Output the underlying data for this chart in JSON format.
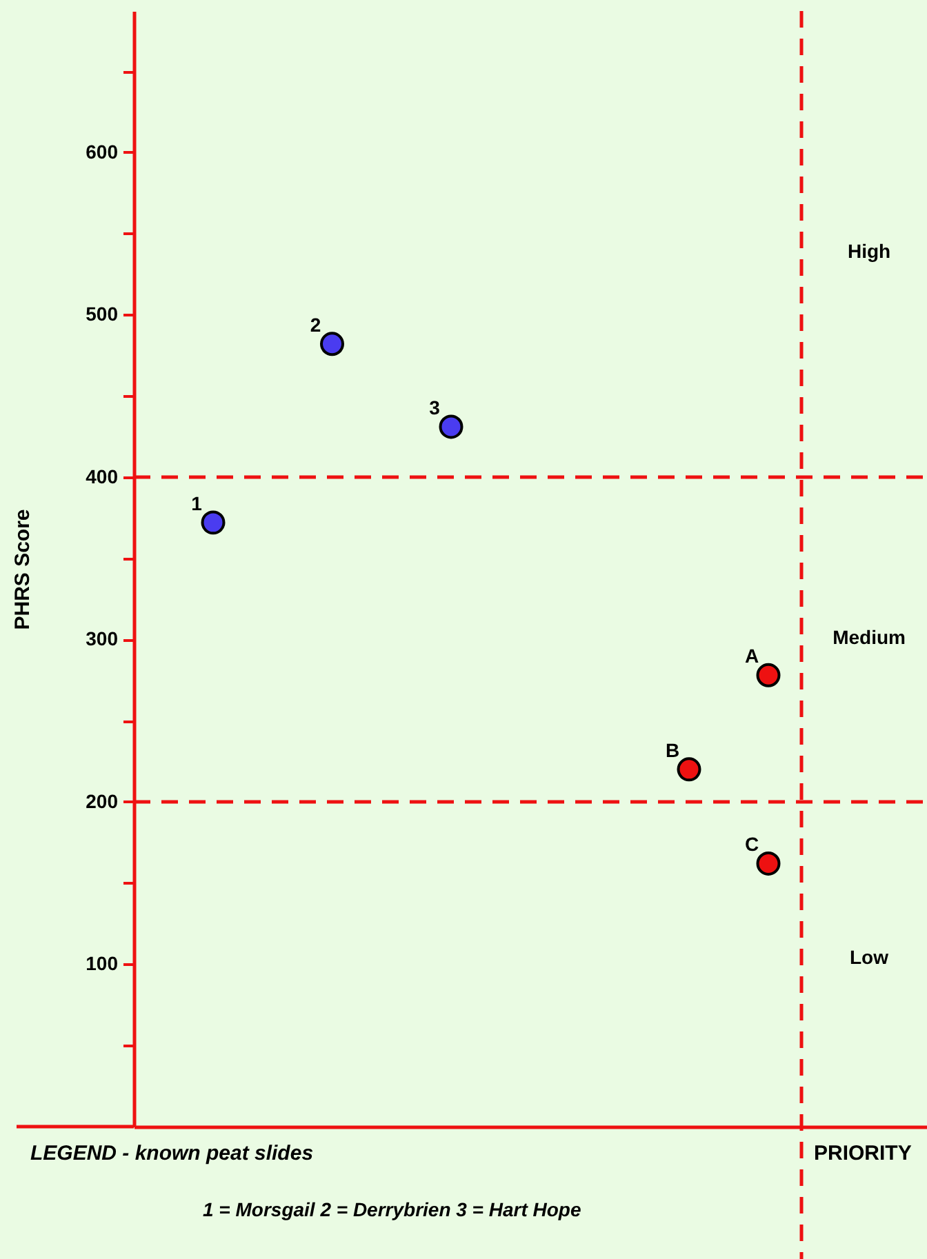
{
  "chart_data": {
    "type": "scatter",
    "ylabel": "PHRS Score",
    "categories": [
      null,
      null,
      null,
      null,
      null,
      null,
      null,
      null,
      null,
      null,
      null,
      null,
      null,
      null,
      null,
      null,
      null,
      null,
      null
    ],
    "ylim": [
      0,
      687
    ],
    "yticks": [
      {
        "value": 50,
        "label": null
      },
      100,
      {
        "value": 150,
        "label": null
      },
      200,
      {
        "value": 250,
        "label": null
      },
      300,
      {
        "value": 350,
        "label": null
      },
      400,
      {
        "value": 450,
        "label": null
      },
      500,
      {
        "value": 550,
        "label": null
      },
      600,
      {
        "value": 650,
        "label": null
      }
    ],
    "tick_labels": "y",
    "grid": false,
    "marker": "circle",
    "series": [
      {
        "name": "1",
        "color": "#4a3cf0",
        "values": [
          null,
          372,
          null,
          null,
          null,
          null,
          null,
          null,
          null,
          null,
          null,
          null,
          null,
          null,
          null,
          null,
          null,
          null,
          null
        ]
      },
      {
        "name": "2",
        "color": "#4a3cf0",
        "values": [
          null,
          null,
          null,
          null,
          482,
          null,
          null,
          null,
          null,
          null,
          null,
          null,
          null,
          null,
          null,
          null,
          null,
          null,
          null
        ]
      },
      {
        "name": "3",
        "color": "#4a3cf0",
        "values": [
          null,
          null,
          null,
          null,
          null,
          null,
          null,
          431,
          null,
          null,
          null,
          null,
          null,
          null,
          null,
          null,
          null,
          null,
          null
        ]
      },
      {
        "name": "A",
        "color": "#ee1111",
        "values": [
          null,
          null,
          null,
          null,
          null,
          null,
          null,
          null,
          null,
          null,
          null,
          null,
          null,
          null,
          null,
          278,
          null,
          null,
          null
        ]
      },
      {
        "name": "B",
        "color": "#ee1111",
        "values": [
          null,
          null,
          null,
          null,
          null,
          null,
          null,
          null,
          null,
          null,
          null,
          null,
          null,
          220,
          null,
          null,
          null,
          null,
          null
        ]
      },
      {
        "name": "C",
        "color": "#ee1111",
        "values": [
          null,
          null,
          null,
          null,
          null,
          null,
          null,
          null,
          null,
          null,
          null,
          null,
          null,
          null,
          null,
          162,
          null,
          null,
          null
        ]
      }
    ],
    "ref_lines": [
      {
        "axis": "y",
        "value": 400,
        "color": "#ee1111",
        "line_style": "dashed"
      },
      {
        "axis": "y",
        "value": 200,
        "color": "#ee1111",
        "line_style": "dashed"
      }
    ],
    "annotations": [
      "LEGEND - known peat slides",
      "PRIORITY",
      "1 = Morsgail   2 = Derrybrien   3 = Hart Hope",
      "High",
      "Medium",
      "Low"
    ]
  }
}
